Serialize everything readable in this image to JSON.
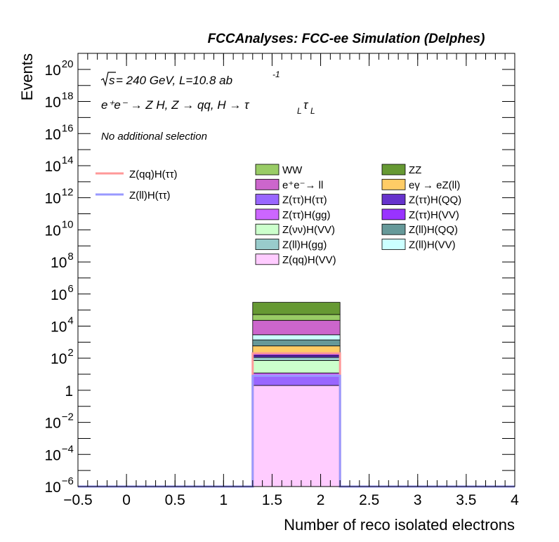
{
  "chart_data": {
    "type": "bar",
    "title": "FCCAnalyses: FCC-ee Simulation (Delphes)",
    "xlabel": "Number of reco isolated electrons",
    "ylabel": "Events",
    "xlim": [
      -0.5,
      4.0
    ],
    "ylim": [
      1e-06,
      1e+21
    ],
    "yscale": "log",
    "x_tick_labels": [
      "−0.5",
      "0",
      "0.5",
      "1",
      "1.5",
      "2",
      "2.5",
      "3",
      "3.5",
      "4"
    ],
    "x_tick_values": [
      -0.5,
      0,
      0.5,
      1,
      1.5,
      2,
      2.5,
      3,
      3.5,
      4
    ],
    "y_tick_exponents": [
      -6,
      -4,
      -2,
      0,
      2,
      4,
      6,
      8,
      10,
      12,
      14,
      16,
      18,
      20
    ],
    "bin": [
      1.3,
      2.2
    ],
    "annotations": {
      "energy_prefix": "s",
      "energy_rest": " = 240 GeV, L=10.8 ab",
      "energy_sup": "-1",
      "process": "e⁺e⁻ → Z H, Z  → qq, H  →  τ",
      "process_sub": "L",
      "selection": "No additional selection"
    },
    "stack": [
      {
        "name": "Z(qq)H(VV)",
        "color": "#ffccff",
        "value": 2
      },
      {
        "name": "Z(ττ)H(ττ)",
        "color": "#9966ff",
        "value": 6
      },
      {
        "name": "Z(ττ)H(gg)",
        "color": "#cc66ff",
        "value": 4
      },
      {
        "name": "Z(νν)H(VV)",
        "color": "#ccffcc",
        "value": 60
      },
      {
        "name": "Z(ll)H(gg)",
        "color": "#99cccc",
        "value": 40
      },
      {
        "name": "Z(ττ)H(QQ)",
        "color": "#6633cc",
        "value": 30
      },
      {
        "name": "Z(ττ)H(VV)",
        "color": "#9933ff",
        "value": 40
      },
      {
        "name": "eγ → eZ(ll)",
        "color": "#ffcc66",
        "value": 400
      },
      {
        "name": "Z(ll)H(QQ)",
        "color": "#669999",
        "value": 800
      },
      {
        "name": "Z(ll)H(VV)",
        "color": "#ccffff",
        "value": 1500
      },
      {
        "name": "e⁺e⁻→ ll",
        "color": "#cc66cc",
        "value": 20000
      },
      {
        "name": "WW",
        "color": "#99cc66",
        "value": 30000
      },
      {
        "name": "ZZ",
        "color": "#669933",
        "value": 250000
      }
    ],
    "lines": [
      {
        "name": "Z(qq)H(ττ)",
        "color": "#ff9999",
        "value": 200
      },
      {
        "name": "Z(ll)H(ττ)",
        "color": "#9999ff",
        "value": 8
      }
    ],
    "legend_order": [
      "WW",
      "ZZ",
      "e⁺e⁻→ ll",
      "eγ → eZ(ll)",
      "Z(ττ)H(ττ)",
      "Z(ττ)H(QQ)",
      "Z(ττ)H(gg)",
      "Z(ττ)H(VV)",
      "Z(νν)H(VV)",
      "Z(ll)H(QQ)",
      "Z(ll)H(gg)",
      "Z(ll)H(VV)",
      "Z(qq)H(VV)"
    ],
    "legend_placement": "upper-middle",
    "grid": false
  }
}
